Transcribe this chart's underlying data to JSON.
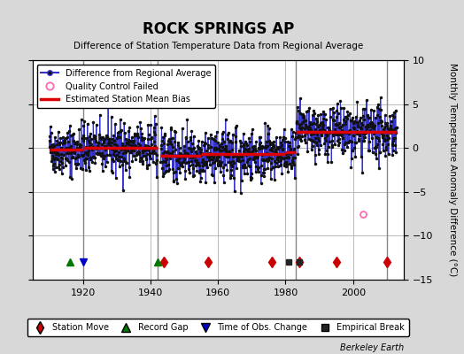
{
  "title": "ROCK SPRINGS AP",
  "subtitle": "Difference of Station Temperature Data from Regional Average",
  "ylabel": "Monthly Temperature Anomaly Difference (°C)",
  "credit": "Berkeley Earth",
  "ylim": [
    -15,
    10
  ],
  "yticks": [
    -15,
    -10,
    -5,
    0,
    5,
    10
  ],
  "xlim": [
    1905,
    2015
  ],
  "xticks": [
    1920,
    1940,
    1960,
    1980,
    2000
  ],
  "bg_color": "#d8d8d8",
  "plot_bg_color": "#ffffff",
  "grid_color": "#b0b0b0",
  "seed": 42,
  "data_segments": [
    {
      "start": 1910,
      "end": 1920,
      "bias": -0.2,
      "std": 1.4
    },
    {
      "start": 1920,
      "end": 1942,
      "bias": 0.0,
      "std": 1.4
    },
    {
      "start": 1943,
      "end": 1983,
      "bias": -0.8,
      "std": 1.4
    },
    {
      "start": 1983,
      "end": 2013,
      "bias": 1.8,
      "std": 1.4
    }
  ],
  "bias_segments": [
    {
      "start": 1910,
      "end": 1920,
      "value": -0.2
    },
    {
      "start": 1920,
      "end": 1942,
      "value": 0.0
    },
    {
      "start": 1943,
      "end": 1955,
      "value": -0.9
    },
    {
      "start": 1955,
      "end": 1980,
      "value": -0.7
    },
    {
      "start": 1980,
      "end": 1983,
      "value": -0.5
    },
    {
      "start": 1983,
      "end": 2013,
      "value": 1.8
    }
  ],
  "vert_lines": [
    1920,
    1942,
    1983,
    2010
  ],
  "vert_line_color": "#888888",
  "event_y": -13.0,
  "station_moves": [
    1944,
    1957,
    1976,
    1984,
    1995,
    2010
  ],
  "record_gaps": [
    1916,
    1942
  ],
  "obs_changes": [
    1920
  ],
  "empirical_breaks": [
    1981,
    1984
  ],
  "qc_fail_x": 2003,
  "qc_fail_y": -7.5,
  "line_color": "#3333cc",
  "dot_color": "#111111",
  "bias_color": "#dd0000",
  "station_move_color": "#cc0000",
  "record_gap_color": "#007700",
  "obs_change_color": "#0000cc",
  "empirical_break_color": "#222222",
  "qc_color": "#ff69b4",
  "legend_loc": "upper left",
  "figsize": [
    5.24,
    4.0
  ],
  "dpi": 100
}
